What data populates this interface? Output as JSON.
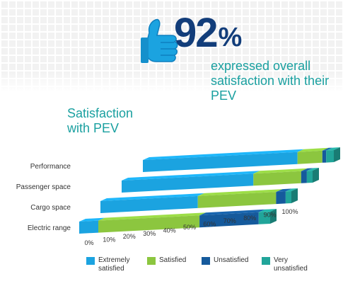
{
  "header": {
    "percent_value": "92",
    "percent_sign": "%",
    "headline": "expressed overall satisfaction with their PEV"
  },
  "icons": {
    "thumb": "thumbs-up-icon"
  },
  "colors": {
    "extremely_satisfied": "#1ba3e0",
    "satisfied": "#8cc63f",
    "unsatisfied": "#155a9c",
    "very_unsatisfied": "#21a59a",
    "title_teal": "#1aa0a0",
    "percent_navy": "#123d7a"
  },
  "chart_data": {
    "type": "bar",
    "orientation": "horizontal",
    "stacked": true,
    "title": "Satisfaction with PEV",
    "categories": [
      "Performance",
      "Passenger space",
      "Cargo space",
      "Electric range"
    ],
    "series": [
      {
        "name": "Extremely satisfied",
        "color": "#1ba3e0",
        "values": [
          81,
          69,
          51,
          10
        ]
      },
      {
        "name": "Satisfied",
        "color": "#8cc63f",
        "values": [
          13,
          25,
          41,
          53
        ]
      },
      {
        "name": "Unsatisfied",
        "color": "#155a9c",
        "values": [
          2,
          3,
          5,
          31
        ]
      },
      {
        "name": "Very unsatisfied",
        "color": "#21a59a",
        "values": [
          4,
          3,
          3,
          6
        ]
      }
    ],
    "x_ticks": [
      "0%",
      "10%",
      "20%",
      "30%",
      "40%",
      "50%",
      "60%",
      "70%",
      "80%",
      "90%",
      "100%"
    ],
    "xlim": [
      0,
      100
    ],
    "legend_position": "bottom",
    "grid": false
  }
}
